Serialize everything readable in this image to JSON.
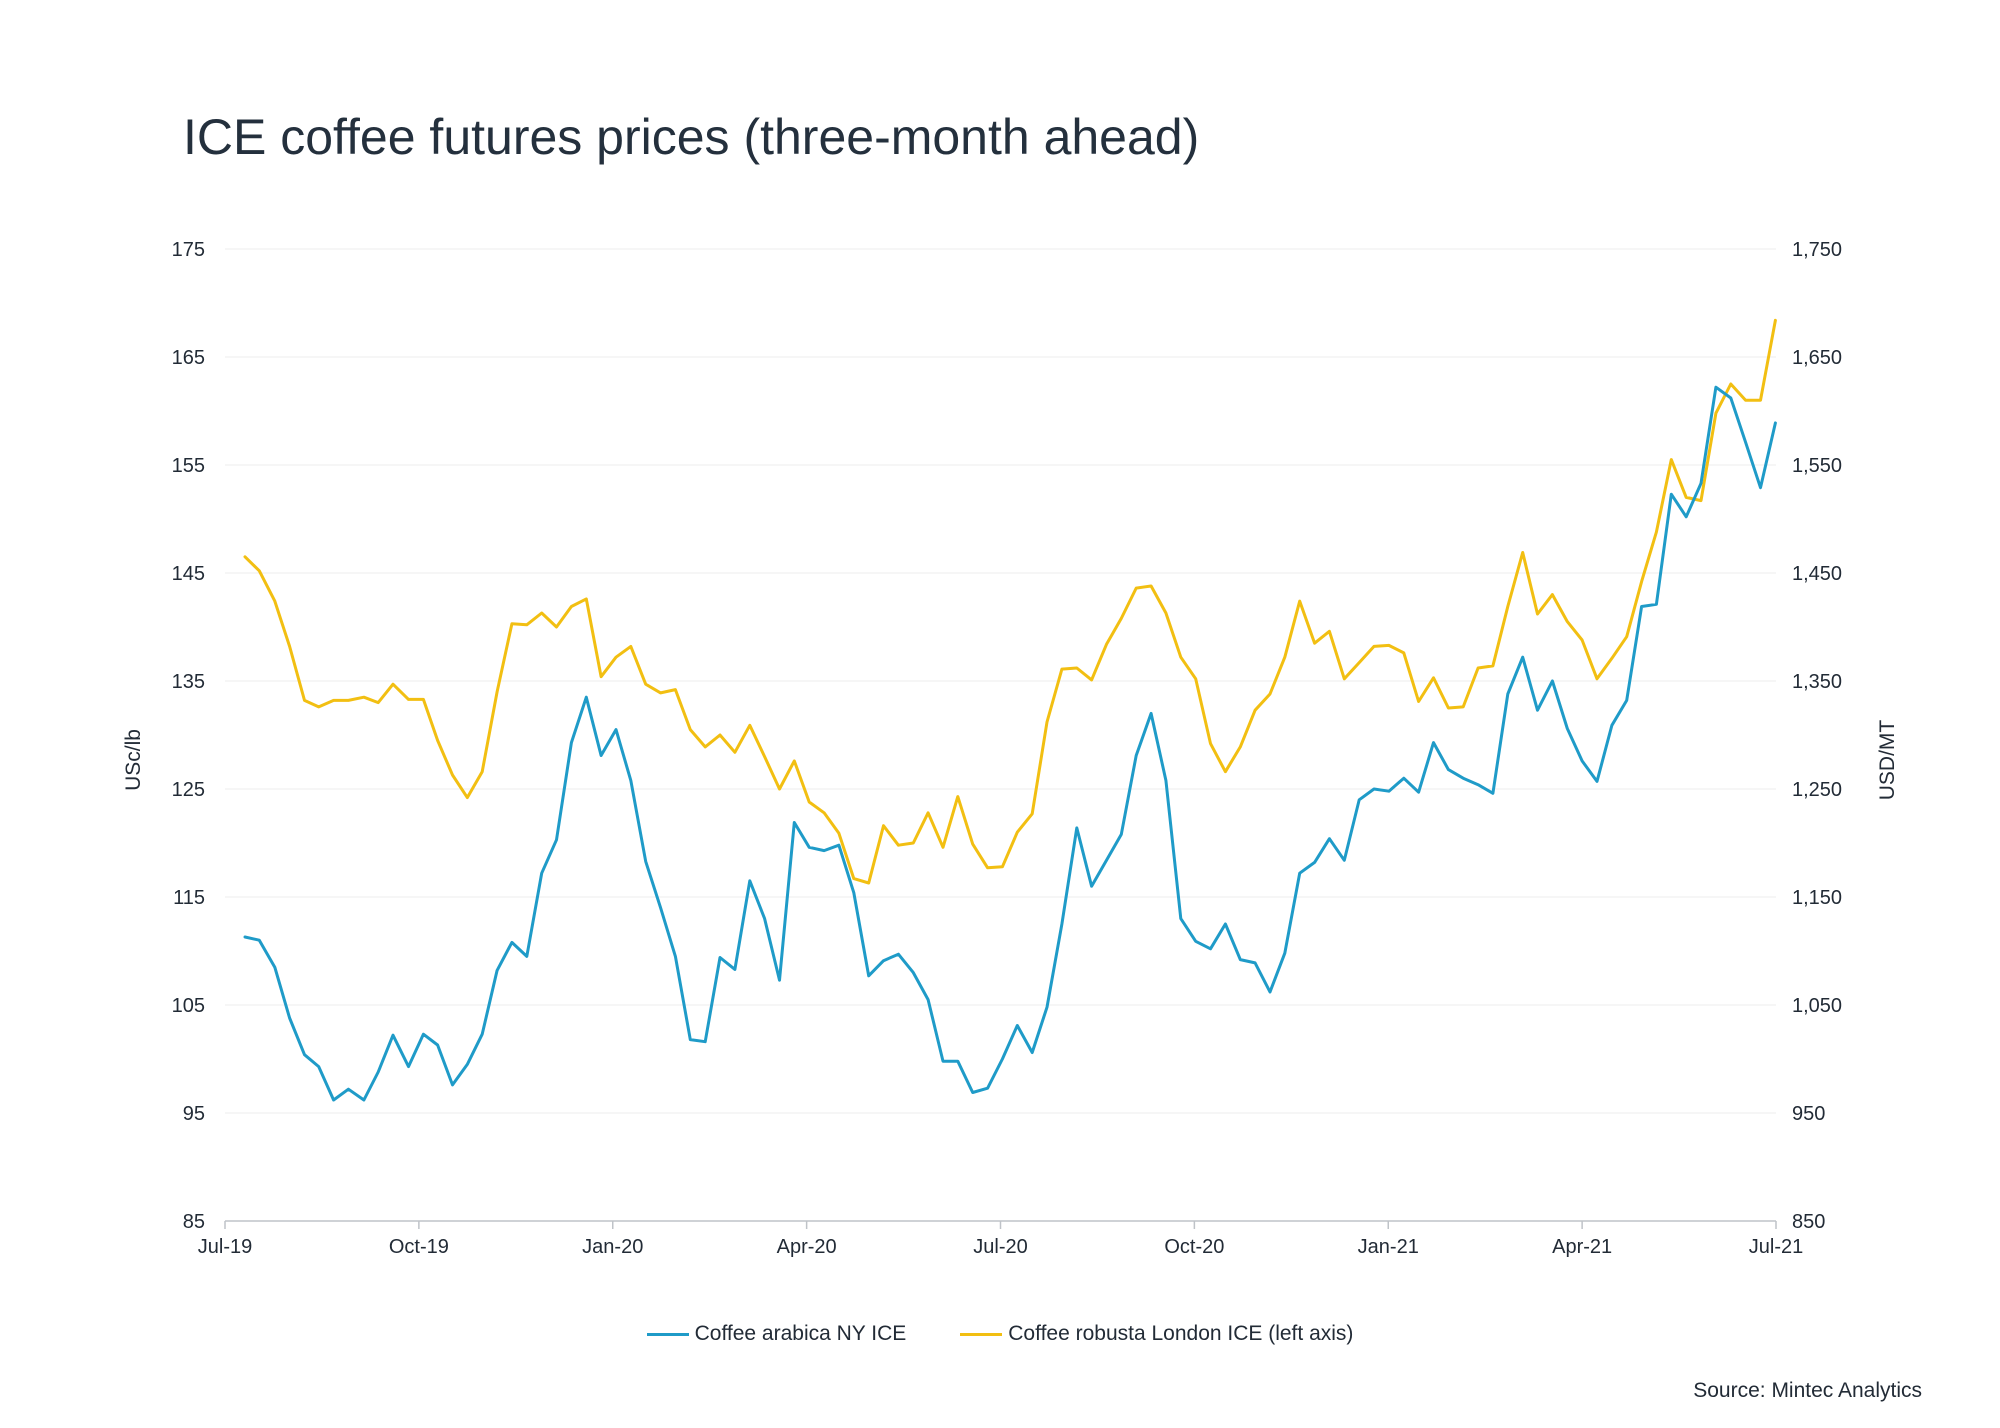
{
  "chart_data": {
    "type": "line",
    "title": "ICE coffee futures prices (three-month ahead)",
    "ylabel_left": "USc/lb",
    "ylabel_right": "USD/MT",
    "ylim_left": [
      85,
      175
    ],
    "ylim_right": [
      850,
      1750
    ],
    "yticks_left": [
      "175",
      "165",
      "155",
      "145",
      "135",
      "125",
      "115",
      "105",
      "95",
      "85"
    ],
    "yticks_right": [
      "1,750",
      "1,650",
      "1,550",
      "1,450",
      "1,350",
      "1,250",
      "1,150",
      "1,050",
      "950",
      "850"
    ],
    "xlim": [
      0,
      24
    ],
    "xticks": [
      {
        "label": "Jul-19",
        "x": 0
      },
      {
        "label": "Oct-19",
        "x": 3
      },
      {
        "label": "Jan-20",
        "x": 6
      },
      {
        "label": "Apr-20",
        "x": 9
      },
      {
        "label": "Jul-20",
        "x": 12
      },
      {
        "label": "Oct-20",
        "x": 15
      },
      {
        "label": "Jan-21",
        "x": 18
      },
      {
        "label": "Apr-21",
        "x": 21
      },
      {
        "label": "Jul-21",
        "x": 24
      }
    ],
    "grid": true,
    "legend_position": "bottom-center",
    "series": [
      {
        "name": "Coffee arabica NY ICE",
        "color": "#1f9bc8",
        "axis": "left",
        "points": [
          [
            0.31,
            111.3
          ],
          [
            0.53,
            111
          ],
          [
            0.77,
            108.5
          ],
          [
            1.0,
            103.8
          ],
          [
            1.23,
            100.4
          ],
          [
            1.45,
            99.3
          ],
          [
            1.68,
            96.2
          ],
          [
            1.91,
            97.2
          ],
          [
            2.15,
            96.2
          ],
          [
            2.37,
            98.8
          ],
          [
            2.6,
            102.2
          ],
          [
            2.84,
            99.3
          ],
          [
            3.07,
            102.3
          ],
          [
            3.29,
            101.3
          ],
          [
            3.52,
            97.6
          ],
          [
            3.75,
            99.5
          ],
          [
            3.98,
            102.3
          ],
          [
            4.21,
            108.2
          ],
          [
            4.44,
            110.8
          ],
          [
            4.67,
            109.5
          ],
          [
            4.9,
            117.2
          ],
          [
            5.13,
            120.3
          ],
          [
            5.36,
            129.3
          ],
          [
            5.59,
            133.5
          ],
          [
            5.82,
            128.1
          ],
          [
            6.05,
            130.5
          ],
          [
            6.28,
            125.8
          ],
          [
            6.51,
            118.3
          ],
          [
            6.74,
            114
          ],
          [
            6.97,
            109.5
          ],
          [
            7.2,
            101.8
          ],
          [
            7.43,
            101.6
          ],
          [
            7.66,
            109.4
          ],
          [
            7.89,
            108.3
          ],
          [
            8.12,
            116.5
          ],
          [
            8.35,
            113
          ],
          [
            8.58,
            107.3
          ],
          [
            8.81,
            121.9
          ],
          [
            9.04,
            119.6
          ],
          [
            9.27,
            119.3
          ],
          [
            9.5,
            119.8
          ],
          [
            9.73,
            115.4
          ],
          [
            9.96,
            107.7
          ],
          [
            10.19,
            109.1
          ],
          [
            10.42,
            109.7
          ],
          [
            10.65,
            108
          ],
          [
            10.88,
            105.5
          ],
          [
            11.11,
            99.8
          ],
          [
            11.34,
            99.8
          ],
          [
            11.57,
            96.9
          ],
          [
            11.8,
            97.3
          ],
          [
            12.03,
            100
          ],
          [
            12.26,
            103.1
          ],
          [
            12.49,
            100.6
          ],
          [
            12.72,
            104.8
          ],
          [
            12.95,
            112.5
          ],
          [
            13.18,
            121.4
          ],
          [
            13.41,
            116
          ],
          [
            13.64,
            118.4
          ],
          [
            13.87,
            120.8
          ],
          [
            14.1,
            128.1
          ],
          [
            14.33,
            132
          ],
          [
            14.56,
            125.8
          ],
          [
            14.79,
            113
          ],
          [
            15.02,
            110.9
          ],
          [
            15.25,
            110.2
          ],
          [
            15.48,
            112.5
          ],
          [
            15.71,
            109.2
          ],
          [
            15.94,
            108.9
          ],
          [
            16.17,
            106.2
          ],
          [
            16.4,
            109.8
          ],
          [
            16.63,
            117.2
          ],
          [
            16.86,
            118.2
          ],
          [
            17.09,
            120.4
          ],
          [
            17.32,
            118.4
          ],
          [
            17.55,
            124
          ],
          [
            17.78,
            125
          ],
          [
            18.01,
            124.8
          ],
          [
            18.24,
            126
          ],
          [
            18.47,
            124.7
          ],
          [
            18.7,
            129.3
          ],
          [
            18.93,
            126.8
          ],
          [
            19.16,
            126
          ],
          [
            19.39,
            125.4
          ],
          [
            19.62,
            124.6
          ],
          [
            19.85,
            133.8
          ],
          [
            20.08,
            137.2
          ],
          [
            20.31,
            132.3
          ],
          [
            20.54,
            135
          ],
          [
            20.77,
            130.6
          ],
          [
            21.0,
            127.6
          ],
          [
            21.23,
            125.7
          ],
          [
            21.46,
            130.9
          ],
          [
            21.69,
            133.2
          ],
          [
            21.92,
            141.9
          ],
          [
            22.15,
            142.1
          ],
          [
            22.38,
            152.3
          ],
          [
            22.61,
            150.2
          ],
          [
            22.84,
            153.3
          ],
          [
            23.07,
            162.2
          ],
          [
            23.3,
            161.2
          ],
          [
            23.53,
            157.1
          ],
          [
            23.76,
            152.9
          ],
          [
            23.99,
            158.9
          ]
        ]
      },
      {
        "name": "Coffee robusta London ICE (left axis)",
        "color": "#f2bf12",
        "axis": "left",
        "points": [
          [
            0.31,
            146.5
          ],
          [
            0.53,
            145.2
          ],
          [
            0.77,
            142.4
          ],
          [
            1.0,
            138.2
          ],
          [
            1.23,
            133.2
          ],
          [
            1.45,
            132.6
          ],
          [
            1.68,
            133.2
          ],
          [
            1.91,
            133.2
          ],
          [
            2.15,
            133.5
          ],
          [
            2.37,
            133
          ],
          [
            2.6,
            134.7
          ],
          [
            2.84,
            133.3
          ],
          [
            3.07,
            133.3
          ],
          [
            3.29,
            129.5
          ],
          [
            3.52,
            126.3
          ],
          [
            3.75,
            124.2
          ],
          [
            3.98,
            126.6
          ],
          [
            4.21,
            134
          ],
          [
            4.44,
            140.3
          ],
          [
            4.67,
            140.2
          ],
          [
            4.9,
            141.3
          ],
          [
            5.13,
            140
          ],
          [
            5.36,
            141.9
          ],
          [
            5.59,
            142.6
          ],
          [
            5.82,
            135.4
          ],
          [
            6.05,
            137.2
          ],
          [
            6.28,
            138.2
          ],
          [
            6.51,
            134.7
          ],
          [
            6.74,
            133.9
          ],
          [
            6.97,
            134.2
          ],
          [
            7.2,
            130.5
          ],
          [
            7.43,
            128.9
          ],
          [
            7.66,
            130
          ],
          [
            7.89,
            128.4
          ],
          [
            8.12,
            130.9
          ],
          [
            8.35,
            128
          ],
          [
            8.58,
            125
          ],
          [
            8.81,
            127.6
          ],
          [
            9.04,
            123.8
          ],
          [
            9.27,
            122.8
          ],
          [
            9.5,
            120.9
          ],
          [
            9.73,
            116.7
          ],
          [
            9.96,
            116.3
          ],
          [
            10.19,
            121.6
          ],
          [
            10.42,
            119.8
          ],
          [
            10.65,
            120
          ],
          [
            10.88,
            122.8
          ],
          [
            11.11,
            119.6
          ],
          [
            11.34,
            124.3
          ],
          [
            11.57,
            119.9
          ],
          [
            11.8,
            117.7
          ],
          [
            12.03,
            117.8
          ],
          [
            12.26,
            121
          ],
          [
            12.49,
            122.7
          ],
          [
            12.72,
            131.2
          ],
          [
            12.95,
            136.1
          ],
          [
            13.18,
            136.2
          ],
          [
            13.41,
            135.1
          ],
          [
            13.64,
            138.4
          ],
          [
            13.87,
            140.8
          ],
          [
            14.1,
            143.6
          ],
          [
            14.33,
            143.8
          ],
          [
            14.56,
            141.3
          ],
          [
            14.79,
            137.2
          ],
          [
            15.02,
            135.2
          ],
          [
            15.25,
            129.2
          ],
          [
            15.48,
            126.6
          ],
          [
            15.71,
            128.9
          ],
          [
            15.94,
            132.3
          ],
          [
            16.17,
            133.8
          ],
          [
            16.4,
            137.2
          ],
          [
            16.63,
            142.4
          ],
          [
            16.86,
            138.5
          ],
          [
            17.09,
            139.6
          ],
          [
            17.32,
            135.2
          ],
          [
            17.55,
            136.7
          ],
          [
            17.78,
            138.2
          ],
          [
            18.01,
            138.3
          ],
          [
            18.24,
            137.6
          ],
          [
            18.47,
            133.1
          ],
          [
            18.7,
            135.3
          ],
          [
            18.93,
            132.5
          ],
          [
            19.16,
            132.6
          ],
          [
            19.39,
            136.2
          ],
          [
            19.62,
            136.4
          ],
          [
            19.85,
            141.9
          ],
          [
            20.08,
            146.9
          ],
          [
            20.31,
            141.2
          ],
          [
            20.54,
            143
          ],
          [
            20.77,
            140.5
          ],
          [
            21.0,
            138.8
          ],
          [
            21.23,
            135.2
          ],
          [
            21.46,
            137.1
          ],
          [
            21.69,
            139.1
          ],
          [
            21.92,
            144.2
          ],
          [
            22.15,
            148.8
          ],
          [
            22.38,
            155.5
          ],
          [
            22.61,
            152
          ],
          [
            22.84,
            151.7
          ],
          [
            23.07,
            159.8
          ],
          [
            23.3,
            162.5
          ],
          [
            23.53,
            161
          ],
          [
            23.76,
            161
          ],
          [
            23.99,
            168.4
          ]
        ]
      }
    ]
  },
  "legend": {
    "items": [
      {
        "label": "Coffee arabica NY ICE",
        "color": "#1f9bc8"
      },
      {
        "label": "Coffee robusta London ICE (left axis)",
        "color": "#f2bf12"
      }
    ]
  },
  "source": "Source: Mintec Analytics"
}
